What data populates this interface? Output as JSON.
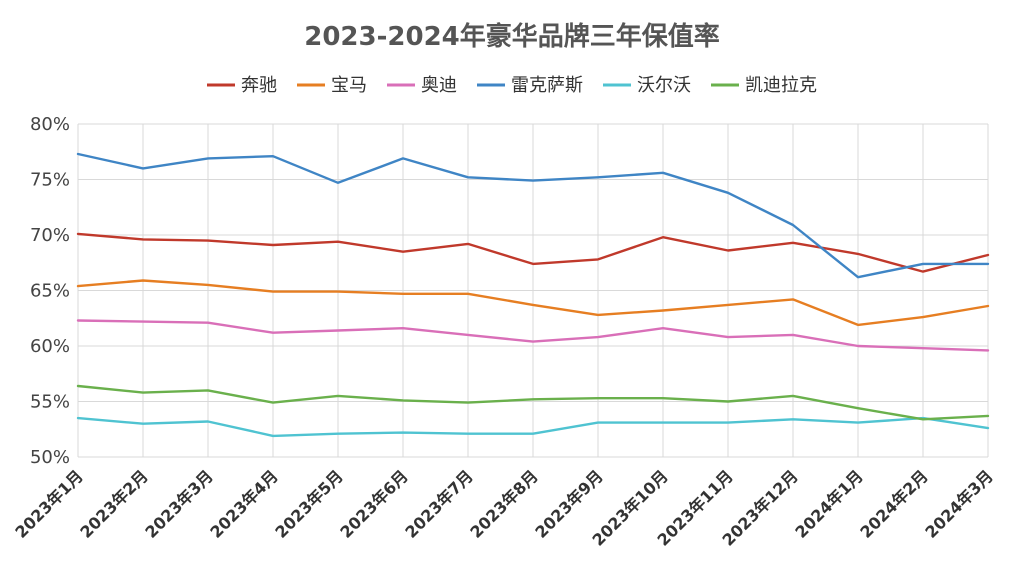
{
  "chart_data": {
    "type": "line",
    "title": "2023-2024年豪华品牌三年保值率",
    "xlabel": "",
    "ylabel": "",
    "ylim": [
      50,
      80
    ],
    "y_ticks": [
      50,
      55,
      60,
      65,
      70,
      75,
      80
    ],
    "y_tick_labels": [
      "50%",
      "55%",
      "60%",
      "65%",
      "70%",
      "75%",
      "80%"
    ],
    "legend_position": "top",
    "grid": true,
    "categories": [
      "2023年1月",
      "2023年2月",
      "2023年3月",
      "2023年4月",
      "2023年5月",
      "2023年6月",
      "2023年7月",
      "2023年8月",
      "2023年9月",
      "2023年10月",
      "2023年11月",
      "2023年12月",
      "2024年1月",
      "2024年2月",
      "2024年3月"
    ],
    "series": [
      {
        "name": "奔驰",
        "color": "#c0392b",
        "values": [
          70.1,
          69.6,
          69.5,
          69.1,
          69.4,
          68.5,
          69.2,
          67.4,
          67.8,
          69.8,
          68.6,
          69.3,
          68.3,
          66.7,
          68.2
        ]
      },
      {
        "name": "宝马",
        "color": "#e67e22",
        "values": [
          65.4,
          65.9,
          65.5,
          64.9,
          64.9,
          64.7,
          64.7,
          63.7,
          62.8,
          63.2,
          63.7,
          64.2,
          61.9,
          62.6,
          63.6
        ]
      },
      {
        "name": "奥迪",
        "color": "#d96fb8",
        "values": [
          62.3,
          62.2,
          62.1,
          61.2,
          61.4,
          61.6,
          61.0,
          60.4,
          60.8,
          61.6,
          60.8,
          61.0,
          60.0,
          59.8,
          59.6
        ]
      },
      {
        "name": "雷克萨斯",
        "color": "#3f85c5",
        "values": [
          77.3,
          76.0,
          76.9,
          77.1,
          74.7,
          76.9,
          75.2,
          74.9,
          75.2,
          75.6,
          73.8,
          70.9,
          66.2,
          67.4,
          67.4
        ]
      },
      {
        "name": "沃尔沃",
        "color": "#4fc3d1",
        "values": [
          53.5,
          53.0,
          53.2,
          51.9,
          52.1,
          52.2,
          52.1,
          52.1,
          53.1,
          53.1,
          53.1,
          53.4,
          53.1,
          53.5,
          52.6
        ]
      },
      {
        "name": "凯迪拉克",
        "color": "#6ab04c",
        "values": [
          56.4,
          55.8,
          56.0,
          54.9,
          55.5,
          55.1,
          54.9,
          55.2,
          55.3,
          55.3,
          55.0,
          55.5,
          54.4,
          53.4,
          53.7
        ]
      }
    ]
  }
}
